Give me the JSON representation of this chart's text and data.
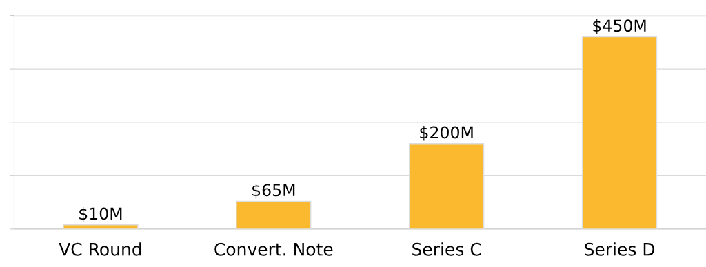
{
  "chart_data": {
    "type": "bar",
    "categories": [
      "VC Round",
      "Convert. Note",
      "Series C",
      "Series D"
    ],
    "values": [
      10,
      65,
      200,
      450
    ],
    "value_labels": [
      "$10M",
      "$65M",
      "$200M",
      "$450M"
    ],
    "color": "#fbb92f",
    "ylim": [
      0,
      500
    ],
    "yticks": [
      {
        "value": 0,
        "label": null
      },
      {
        "value": 125,
        "label": null
      },
      {
        "value": 250,
        "label": null
      },
      {
        "value": 375,
        "label": null
      },
      {
        "value": 500,
        "label": null
      }
    ],
    "grid": "y",
    "legend": false
  }
}
